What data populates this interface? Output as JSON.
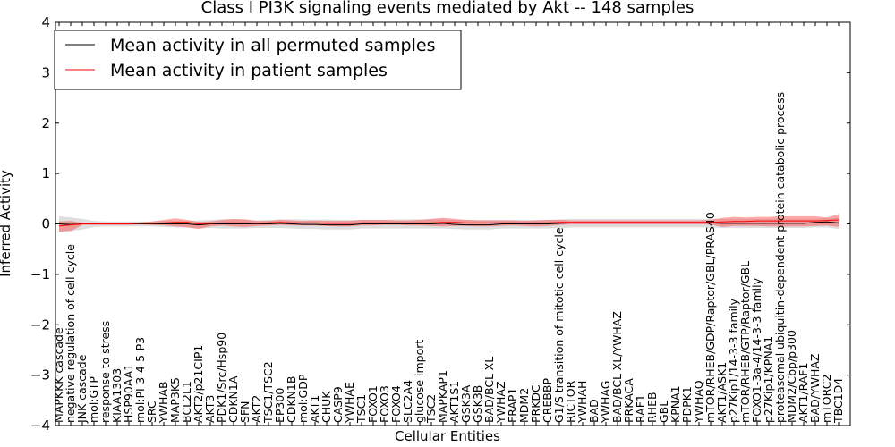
{
  "chart_data": {
    "type": "line",
    "title": "Class I PI3K signaling events mediated by Akt -- 148 samples",
    "xlabel": "Cellular Entities",
    "ylabel": "Inferred Activity",
    "ylim": [
      -4,
      4
    ],
    "yticks": [
      4,
      3,
      2,
      1,
      0,
      -1,
      -2,
      -3,
      -4
    ],
    "ytick_labels": [
      "4",
      "3",
      "2",
      "1",
      "0",
      "−1",
      "−2",
      "−3",
      "−4"
    ],
    "legend": {
      "placement": "top-left",
      "entries": [
        {
          "label": "Mean activity in all permuted samples",
          "color": "#000000"
        },
        {
          "label": "Mean activity in patient samples",
          "color": "#ff0000"
        }
      ]
    },
    "categories": [
      "MAPKKK cascade",
      "negative regulation of cell cycle",
      "JNK cascade",
      "mol:GTP",
      "response to stress",
      "KIAA1303",
      "HSP90AA1",
      "mol:PI-3-4-5-P3",
      "SRC",
      "YWHAB",
      "MAP3K5",
      "BCL2L1",
      "AKT2/p21CIP1",
      "AKT3",
      "PDK1/Src/Hsp90",
      "CDKN1A",
      "SFN",
      "AKT2",
      "TSC1/TSC2",
      "EP300",
      "CDKN1B",
      "mol:GDP",
      "AKT1",
      "CHUK",
      "CASP9",
      "YWHAE",
      "TSC1",
      "FOXO1",
      "FOXO3",
      "FOXO4",
      "SLC2A4",
      "glucose import",
      "TSC2",
      "MAPKAP1",
      "AKT1S1",
      "GSK3A",
      "GSK3B",
      "BAD/BCL-XL",
      "YWHAZ",
      "FRAP1",
      "MDM2",
      "PRKDC",
      "CREBBP",
      "G1/S transition of mitotic cell cycle",
      "RICTOR",
      "YWHAH",
      "BAD",
      "YWHAG",
      "BAD/BCL-XL/YWHAZ",
      "PRKACA",
      "RAF1",
      "RHEB",
      "GBL",
      "KPNA1",
      "PDPK1",
      "YWHAQ",
      "mTOR/RHEB/GDP/Raptor/GBL/PRAS40",
      "AKT1/ASK1",
      "p27Kip1/14-3-3 family",
      "mTOR/RHEB/GTP/Raptor/GBL",
      "FOXO1-3a-4/14-3-3 family",
      "p27Kip1/KPNA1",
      "proteasomal ubiquitin-dependent protein catabolic process",
      "MDM2/Cbp/p300",
      "AKT1/RAF1",
      "BAD/YWHAZ",
      "mTORC2",
      "TBC1D4"
    ],
    "series": [
      {
        "name": "Mean activity in all permuted samples",
        "color": "#000000",
        "values": [
          0.0,
          -0.01,
          0.0,
          0.0,
          0.0,
          0.0,
          0.0,
          0.0,
          0.0,
          0.0,
          0.0,
          0.0,
          -0.02,
          0.0,
          0.0,
          0.0,
          0.0,
          0.0,
          0.0,
          0.01,
          0.0,
          -0.01,
          -0.01,
          -0.02,
          -0.02,
          -0.02,
          0.0,
          0.0,
          0.0,
          0.0,
          0.0,
          0.0,
          0.0,
          0.01,
          -0.01,
          -0.02,
          -0.02,
          -0.02,
          0.0,
          0.0,
          0.0,
          0.0,
          0.0,
          0.01,
          0.02,
          0.02,
          0.02,
          0.02,
          0.02,
          0.02,
          0.02,
          0.02,
          0.02,
          0.02,
          0.02,
          0.02,
          0.02,
          0.01,
          0.01,
          0.01,
          0.01,
          0.01,
          0.01,
          0.01,
          0.01,
          0.03,
          0.04,
          0.02
        ],
        "band_upper": [
          0.15,
          0.13,
          0.1,
          0.06,
          0.05,
          0.05,
          0.05,
          0.05,
          0.05,
          0.06,
          0.06,
          0.06,
          0.07,
          0.08,
          0.09,
          0.09,
          0.08,
          0.07,
          0.08,
          0.09,
          0.09,
          0.09,
          0.08,
          0.09,
          0.08,
          0.08,
          0.08,
          0.08,
          0.08,
          0.09,
          0.09,
          0.09,
          0.09,
          0.09,
          0.08,
          0.08,
          0.08,
          0.08,
          0.08,
          0.08,
          0.08,
          0.08,
          0.08,
          0.09,
          0.1,
          0.1,
          0.1,
          0.1,
          0.1,
          0.1,
          0.1,
          0.1,
          0.1,
          0.1,
          0.1,
          0.1,
          0.1,
          0.1,
          0.1,
          0.1,
          0.1,
          0.1,
          0.1,
          0.1,
          0.1,
          0.1,
          0.12,
          0.12
        ],
        "band_lower": [
          -0.15,
          -0.14,
          -0.11,
          -0.06,
          -0.05,
          -0.05,
          -0.05,
          -0.05,
          -0.05,
          -0.06,
          -0.07,
          -0.07,
          -0.09,
          -0.08,
          -0.09,
          -0.09,
          -0.09,
          -0.08,
          -0.08,
          -0.08,
          -0.09,
          -0.1,
          -0.1,
          -0.11,
          -0.11,
          -0.11,
          -0.09,
          -0.09,
          -0.09,
          -0.09,
          -0.09,
          -0.09,
          -0.09,
          -0.09,
          -0.1,
          -0.11,
          -0.11,
          -0.11,
          -0.09,
          -0.09,
          -0.09,
          -0.09,
          -0.09,
          -0.08,
          -0.07,
          -0.07,
          -0.07,
          -0.07,
          -0.07,
          -0.07,
          -0.07,
          -0.07,
          -0.07,
          -0.07,
          -0.07,
          -0.07,
          -0.07,
          -0.08,
          -0.08,
          -0.08,
          -0.08,
          -0.08,
          -0.08,
          -0.08,
          -0.08,
          -0.07,
          -0.07,
          -0.1
        ]
      },
      {
        "name": "Mean activity in patient samples",
        "color": "#ff0000",
        "values": [
          -0.04,
          -0.02,
          0.0,
          0.0,
          0.0,
          0.0,
          0.0,
          0.01,
          0.01,
          0.02,
          0.03,
          0.03,
          0.0,
          0.01,
          0.02,
          0.02,
          0.02,
          0.01,
          0.02,
          0.03,
          0.02,
          0.02,
          0.02,
          0.01,
          0.01,
          0.01,
          0.02,
          0.02,
          0.02,
          0.02,
          0.02,
          0.02,
          0.02,
          0.03,
          0.03,
          0.02,
          0.02,
          0.02,
          0.02,
          0.02,
          0.02,
          0.02,
          0.02,
          0.03,
          0.03,
          0.03,
          0.03,
          0.03,
          0.03,
          0.03,
          0.03,
          0.03,
          0.03,
          0.03,
          0.03,
          0.03,
          0.03,
          0.04,
          0.05,
          0.05,
          0.06,
          0.06,
          0.06,
          0.06,
          0.06,
          0.06,
          0.07,
          0.08
        ],
        "band_upper": [
          0.05,
          0.06,
          0.02,
          0.02,
          0.02,
          0.02,
          0.02,
          0.03,
          0.05,
          0.08,
          0.11,
          0.08,
          0.04,
          0.05,
          0.08,
          0.1,
          0.09,
          0.06,
          0.06,
          0.08,
          0.07,
          0.06,
          0.07,
          0.06,
          0.06,
          0.06,
          0.08,
          0.08,
          0.08,
          0.07,
          0.07,
          0.08,
          0.1,
          0.12,
          0.1,
          0.08,
          0.07,
          0.07,
          0.07,
          0.07,
          0.06,
          0.07,
          0.08,
          0.08,
          0.07,
          0.07,
          0.07,
          0.07,
          0.07,
          0.07,
          0.07,
          0.07,
          0.07,
          0.07,
          0.07,
          0.07,
          0.08,
          0.12,
          0.14,
          0.13,
          0.14,
          0.14,
          0.15,
          0.15,
          0.15,
          0.15,
          0.13,
          0.2
        ],
        "band_lower": [
          -0.15,
          -0.14,
          -0.02,
          -0.02,
          -0.02,
          -0.02,
          -0.02,
          -0.01,
          -0.02,
          -0.03,
          -0.05,
          -0.07,
          -0.1,
          -0.05,
          -0.03,
          -0.05,
          -0.06,
          -0.04,
          -0.03,
          -0.02,
          -0.03,
          -0.03,
          -0.03,
          -0.04,
          -0.05,
          -0.05,
          -0.03,
          -0.03,
          -0.02,
          -0.02,
          -0.03,
          -0.03,
          -0.04,
          -0.05,
          -0.04,
          -0.04,
          -0.05,
          -0.05,
          -0.04,
          -0.03,
          -0.04,
          -0.05,
          -0.04,
          -0.02,
          -0.01,
          -0.01,
          -0.01,
          -0.01,
          -0.01,
          -0.01,
          -0.01,
          -0.01,
          -0.01,
          -0.01,
          -0.01,
          -0.01,
          -0.01,
          -0.06,
          -0.04,
          -0.04,
          -0.04,
          -0.05,
          -0.05,
          -0.05,
          -0.05,
          -0.04,
          -0.03,
          -0.06
        ]
      }
    ]
  }
}
